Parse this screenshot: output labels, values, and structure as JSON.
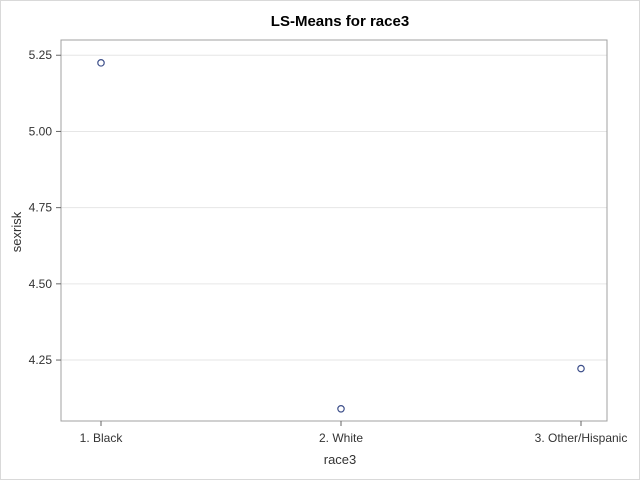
{
  "chart_data": {
    "type": "scatter",
    "title": "LS-Means for race3",
    "xlabel": "race3",
    "ylabel": "sexrisk",
    "categories": [
      "1. Black",
      "2. White",
      "3. Other/Hispanic"
    ],
    "values": [
      5.225,
      4.09,
      4.222
    ],
    "ylim": [
      4.05,
      5.3
    ],
    "yticks": [
      4.25,
      4.5,
      4.75,
      5.0,
      5.25
    ],
    "ytick_labels": [
      "4.25",
      "4.50",
      "4.75",
      "5.00",
      "5.25"
    ],
    "grid": true,
    "marker_color": "#3d4f8a",
    "grid_color": "#e6e6e6"
  }
}
